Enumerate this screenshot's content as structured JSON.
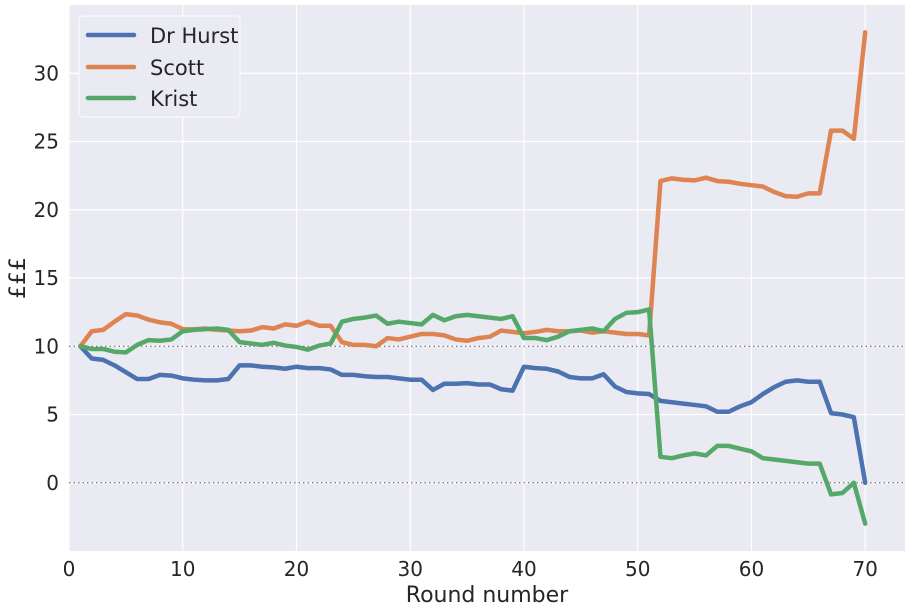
{
  "chart_data": {
    "type": "line",
    "xlabel": "Round number",
    "ylabel": "£££",
    "xlim": [
      0,
      73.5
    ],
    "ylim": [
      -5,
      35
    ],
    "xticks": [
      0,
      10,
      20,
      30,
      40,
      50,
      60,
      70
    ],
    "yticks": [
      0,
      5,
      10,
      15,
      20,
      25,
      30
    ],
    "grid": true,
    "legend_position": "top-left",
    "reference_lines": [
      0,
      10
    ],
    "x": [
      1,
      2,
      3,
      4,
      5,
      6,
      7,
      8,
      9,
      10,
      11,
      12,
      13,
      14,
      15,
      16,
      17,
      18,
      19,
      20,
      21,
      22,
      23,
      24,
      25,
      26,
      27,
      28,
      29,
      30,
      31,
      32,
      33,
      34,
      35,
      36,
      37,
      38,
      39,
      40,
      41,
      42,
      43,
      44,
      45,
      46,
      47,
      48,
      49,
      50,
      51,
      52,
      53,
      54,
      55,
      56,
      57,
      58,
      59,
      60,
      61,
      62,
      63,
      64,
      65,
      66,
      67,
      68,
      69,
      70
    ],
    "series": [
      {
        "name": "Dr Hurst",
        "color": "#4c72b0",
        "values": [
          10,
          9.1,
          9.0,
          8.6,
          8.1,
          7.6,
          7.6,
          7.9,
          7.85,
          7.65,
          7.55,
          7.5,
          7.5,
          7.6,
          8.6,
          8.6,
          8.5,
          8.45,
          8.35,
          8.5,
          8.4,
          8.4,
          8.3,
          7.9,
          7.9,
          7.8,
          7.75,
          7.75,
          7.65,
          7.55,
          7.55,
          6.8,
          7.25,
          7.25,
          7.3,
          7.2,
          7.2,
          6.85,
          6.75,
          8.5,
          8.4,
          8.35,
          8.15,
          7.75,
          7.65,
          7.65,
          7.95,
          7.05,
          6.65,
          6.55,
          6.5,
          6.0,
          5.9,
          5.8,
          5.7,
          5.6,
          5.2,
          5.2,
          5.6,
          5.9,
          6.5,
          7.0,
          7.4,
          7.5,
          7.4,
          7.4,
          5.1,
          5.0,
          4.8,
          0.0
        ]
      },
      {
        "name": "Scott",
        "color": "#dd8452",
        "values": [
          10,
          11.1,
          11.2,
          11.8,
          12.35,
          12.25,
          11.95,
          11.75,
          11.65,
          11.25,
          11.25,
          11.3,
          11.2,
          11.15,
          11.1,
          11.15,
          11.4,
          11.3,
          11.6,
          11.5,
          11.8,
          11.5,
          11.5,
          10.3,
          10.1,
          10.1,
          10.0,
          10.6,
          10.5,
          10.7,
          10.9,
          10.9,
          10.8,
          10.5,
          10.4,
          10.6,
          10.7,
          11.15,
          11.05,
          10.95,
          11.05,
          11.2,
          11.1,
          11.1,
          11.15,
          11.0,
          11.1,
          11.0,
          10.9,
          10.9,
          10.8,
          22.1,
          22.3,
          22.2,
          22.15,
          22.35,
          22.1,
          22.05,
          21.9,
          21.8,
          21.7,
          21.3,
          21.0,
          20.95,
          21.2,
          21.2,
          25.8,
          25.8,
          25.2,
          33.0
        ]
      },
      {
        "name": "Krist",
        "color": "#55a868",
        "values": [
          10,
          9.8,
          9.8,
          9.6,
          9.55,
          10.1,
          10.45,
          10.4,
          10.5,
          11.1,
          11.2,
          11.25,
          11.3,
          11.2,
          10.3,
          10.2,
          10.1,
          10.25,
          10.05,
          9.95,
          9.75,
          10.05,
          10.2,
          11.8,
          12.0,
          12.1,
          12.25,
          11.65,
          11.8,
          11.7,
          11.6,
          12.3,
          11.9,
          12.2,
          12.3,
          12.2,
          12.1,
          12.0,
          12.2,
          10.6,
          10.6,
          10.45,
          10.7,
          11.1,
          11.2,
          11.3,
          11.1,
          12.0,
          12.45,
          12.5,
          12.7,
          1.9,
          1.8,
          2.0,
          2.15,
          2.0,
          2.7,
          2.7,
          2.5,
          2.3,
          1.8,
          1.7,
          1.6,
          1.5,
          1.4,
          1.4,
          -0.85,
          -0.75,
          0.0,
          -3.0
        ]
      }
    ]
  }
}
